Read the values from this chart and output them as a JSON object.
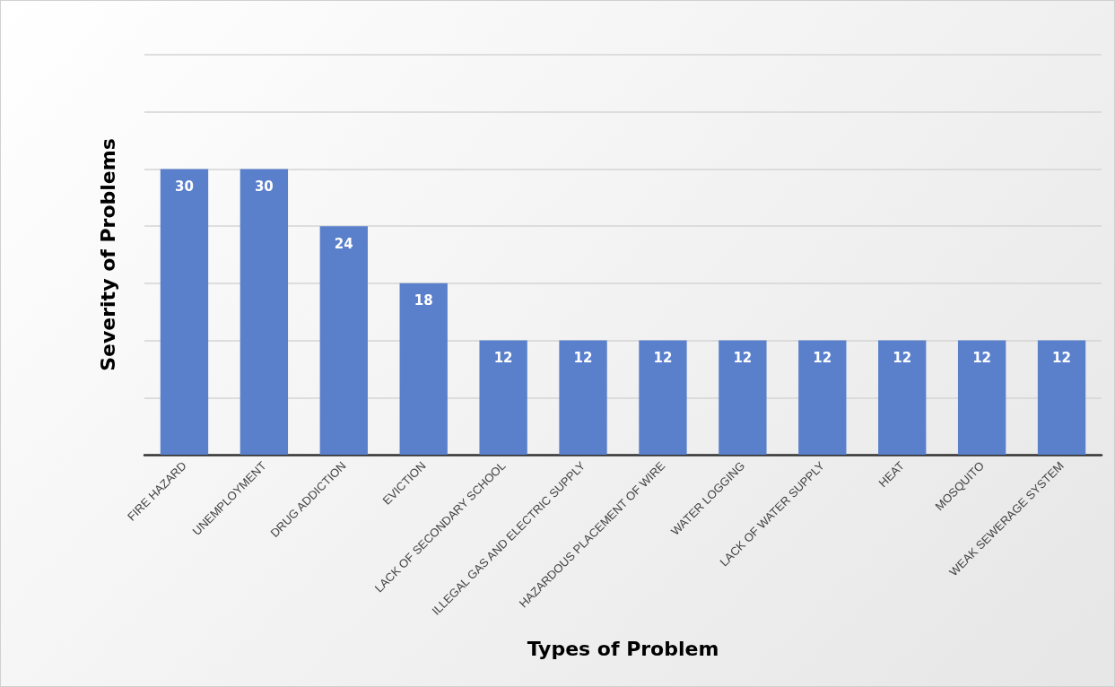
{
  "chart_data": {
    "type": "bar",
    "xlabel": "Types of Problem",
    "ylabel": "Severity of Problems",
    "categories": [
      "FIRE HAZARD",
      "UNEMPLOYMENT",
      "DRUG ADDICTION",
      "EVICTION",
      "LACK OF SECONDARY SCHOOL",
      "ILLEGAL GAS AND ELECTRIC SUPPLY",
      "HAZARDOUS PLACEMENT OF WIRE",
      "WATER LOGGING",
      "LACK OF WATER SUPPLY",
      "HEAT",
      "MOSQUITO",
      "WEAK SEWERAGE SYSTEM"
    ],
    "values": [
      30,
      30,
      24,
      18,
      12,
      12,
      12,
      12,
      12,
      12,
      12,
      12
    ],
    "color": "#5a80cc",
    "data_labels": true,
    "grid": "y",
    "ylim": [
      0,
      42
    ],
    "yticks": [
      {
        "value": 0,
        "label": null
      },
      {
        "value": 6,
        "label": null
      },
      {
        "value": 12,
        "label": null
      },
      {
        "value": 18,
        "label": null
      },
      {
        "value": 24,
        "label": null
      },
      {
        "value": 30,
        "label": null
      },
      {
        "value": 36,
        "label": null
      },
      {
        "value": 42,
        "label": null
      }
    ]
  }
}
